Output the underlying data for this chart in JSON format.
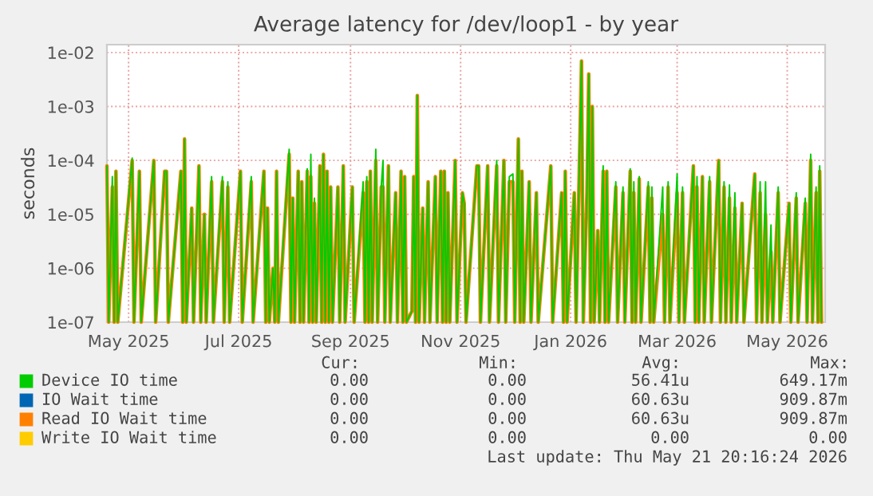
{
  "chart_data": {
    "type": "line",
    "title": "Average latency for /dev/loop1 - by year",
    "ylabel": "seconds",
    "log": "y",
    "grid": true,
    "legend": "bottom",
    "marker": "none",
    "line_style": "solid",
    "xlim": [
      "2025-04-19",
      "2026-05-22"
    ],
    "ylim": [
      1e-07,
      0.014
    ],
    "xticks": [
      {
        "value": "2025-05-01",
        "label": "May 2025"
      },
      {
        "value": "2025-07-01",
        "label": "Jul 2025"
      },
      {
        "value": "2025-09-01",
        "label": "Sep 2025"
      },
      {
        "value": "2025-11-01",
        "label": "Nov 2025"
      },
      {
        "value": "2026-01-01",
        "label": "Jan 2026"
      },
      {
        "value": "2026-03-01",
        "label": "Mar 2026"
      },
      {
        "value": "2026-05-01",
        "label": "May 2026"
      }
    ],
    "yticks": [
      {
        "value": 1e-07,
        "label": "1e-07"
      },
      {
        "value": 1e-06,
        "label": "1e-06"
      },
      {
        "value": 1e-05,
        "label": "1e-05"
      },
      {
        "value": 0.0001,
        "label": "1e-04"
      },
      {
        "value": 0.001,
        "label": "1e-03"
      },
      {
        "value": 0.01,
        "label": "1e-02"
      }
    ],
    "x": [
      "2025-04-19",
      "2025-04-20",
      "2025-04-22",
      "2025-04-23",
      "2025-04-24",
      "2025-04-25",
      "2025-05-03",
      "2025-05-04",
      "2025-05-07",
      "2025-05-08",
      "2025-05-15",
      "2025-05-16",
      "2025-05-21",
      "2025-05-22",
      "2025-05-23",
      "2025-05-30",
      "2025-05-31",
      "2025-06-01",
      "2025-06-02",
      "2025-06-05",
      "2025-06-06",
      "2025-06-09",
      "2025-06-10",
      "2025-06-12",
      "2025-06-13",
      "2025-06-16",
      "2025-06-17",
      "2025-06-22",
      "2025-06-23",
      "2025-06-25",
      "2025-06-26",
      "2025-07-02",
      "2025-07-03",
      "2025-07-08",
      "2025-07-09",
      "2025-07-15",
      "2025-07-16",
      "2025-07-17",
      "2025-07-18",
      "2025-07-20",
      "2025-07-21",
      "2025-07-22",
      "2025-07-23",
      "2025-07-29",
      "2025-07-30",
      "2025-07-31",
      "2025-08-01",
      "2025-08-03",
      "2025-08-04",
      "2025-08-05",
      "2025-08-06",
      "2025-08-08",
      "2025-08-09",
      "2025-08-10",
      "2025-08-11",
      "2025-08-12",
      "2025-08-13",
      "2025-08-15",
      "2025-08-16",
      "2025-08-17",
      "2025-08-18",
      "2025-08-19",
      "2025-08-20",
      "2025-08-21",
      "2025-08-22",
      "2025-08-25",
      "2025-08-26",
      "2025-08-28",
      "2025-08-29",
      "2025-09-02",
      "2025-09-03",
      "2025-09-08",
      "2025-09-09",
      "2025-09-10",
      "2025-09-11",
      "2025-09-12",
      "2025-09-13",
      "2025-09-15",
      "2025-09-16",
      "2025-09-18",
      "2025-09-19",
      "2025-09-20",
      "2025-09-22",
      "2025-09-23",
      "2025-09-26",
      "2025-09-27",
      "2025-09-29",
      "2025-09-30",
      "2025-10-01",
      "2025-10-02",
      "2025-10-05",
      "2025-10-06",
      "2025-10-07",
      "2025-10-08",
      "2025-10-09",
      "2025-10-11",
      "2025-10-12",
      "2025-10-14",
      "2025-10-15",
      "2025-10-18",
      "2025-10-19",
      "2025-10-21",
      "2025-10-22",
      "2025-10-23",
      "2025-10-24",
      "2025-10-25",
      "2025-10-26",
      "2025-10-29",
      "2025-10-30",
      "2025-11-02",
      "2025-11-03",
      "2025-11-04",
      "2025-11-10",
      "2025-11-11",
      "2025-11-12",
      "2025-11-16",
      "2025-11-17",
      "2025-11-21",
      "2025-11-22",
      "2025-11-25",
      "2025-11-26",
      "2025-11-28",
      "2025-11-30",
      "2025-12-01",
      "2025-12-03",
      "2025-12-04",
      "2025-12-05",
      "2025-12-06",
      "2025-12-09",
      "2025-12-10",
      "2025-12-13",
      "2025-12-14",
      "2025-12-21",
      "2025-12-22",
      "2025-12-27",
      "2025-12-28",
      "2025-12-29",
      "2025-12-30",
      "2026-01-03",
      "2026-01-04",
      "2026-01-07",
      "2026-01-08",
      "2026-01-10",
      "2026-01-11",
      "2026-01-12",
      "2026-01-13",
      "2026-01-14",
      "2026-01-16",
      "2026-01-17",
      "2026-01-19",
      "2026-01-20",
      "2026-01-21",
      "2026-01-22",
      "2026-01-26",
      "2026-01-27",
      "2026-01-30",
      "2026-01-31",
      "2026-02-03",
      "2026-02-04",
      "2026-02-05",
      "2026-02-06",
      "2026-02-08",
      "2026-02-09",
      "2026-02-13",
      "2026-02-14",
      "2026-02-15",
      "2026-02-16",
      "2026-02-21",
      "2026-02-22",
      "2026-02-24",
      "2026-02-25",
      "2026-03-01",
      "2026-03-02",
      "2026-03-04",
      "2026-03-05",
      "2026-03-10",
      "2026-03-11",
      "2026-03-12",
      "2026-03-13",
      "2026-03-15",
      "2026-03-16",
      "2026-03-19",
      "2026-03-20",
      "2026-03-24",
      "2026-03-25",
      "2026-03-27",
      "2026-03-28",
      "2026-03-30",
      "2026-03-31",
      "2026-04-02",
      "2026-04-03",
      "2026-04-06",
      "2026-04-07",
      "2026-04-13",
      "2026-04-14",
      "2026-04-16",
      "2026-04-17",
      "2026-04-19",
      "2026-04-20",
      "2026-04-22",
      "2026-04-23",
      "2026-04-26",
      "2026-04-27",
      "2026-05-02",
      "2026-05-03",
      "2026-05-06",
      "2026-05-07",
      "2026-05-11",
      "2026-05-12",
      "2026-05-14",
      "2026-05-15",
      "2026-05-17",
      "2026-05-18",
      "2026-05-19",
      "2026-05-20"
    ],
    "series": [
      {
        "name": "Device IO time",
        "color": "#00cc00",
        "values": [
          7.9e-05,
          1e-07,
          5e-05,
          1e-07,
          6.3e-05,
          1e-07,
          0.00011,
          1e-07,
          6.3e-05,
          1e-07,
          0.0001,
          1e-07,
          6.3e-05,
          6.3e-05,
          1e-07,
          6.3e-05,
          1e-07,
          0.00025,
          1e-07,
          1.3e-05,
          1e-07,
          7.9e-05,
          1e-07,
          1e-05,
          1e-07,
          5e-05,
          1e-07,
          5e-05,
          1e-07,
          4e-05,
          1e-07,
          6.3e-05,
          1e-07,
          5e-05,
          1e-07,
          6.3e-05,
          1e-07,
          1.3e-05,
          1e-07,
          1e-06,
          1e-07,
          6.3e-05,
          1e-07,
          0.00016,
          1e-07,
          2e-05,
          1e-07,
          6.3e-05,
          1e-07,
          4e-05,
          1e-07,
          7e-05,
          1e-07,
          0.00013,
          1e-07,
          2e-05,
          1e-07,
          7.9e-05,
          1e-07,
          0.00013,
          1e-07,
          6.3e-05,
          1e-07,
          3.2e-05,
          1e-07,
          3.2e-05,
          1e-07,
          7.9e-05,
          1e-07,
          3.2e-05,
          1e-07,
          4e-05,
          1e-07,
          5e-05,
          1e-07,
          6.3e-05,
          1e-07,
          0.00016,
          1e-07,
          3.2e-05,
          0.0001,
          1e-07,
          7.9e-05,
          1e-07,
          2.5e-05,
          1e-07,
          6.3e-05,
          1e-07,
          5e-05,
          1e-07,
          1.6e-07,
          5e-05,
          1e-07,
          0.0016,
          1e-07,
          1.3e-05,
          1e-07,
          4e-05,
          1e-07,
          5e-05,
          1e-07,
          6.3e-05,
          1e-07,
          6.3e-05,
          1e-07,
          2.5e-05,
          1e-07,
          0.0001,
          1e-07,
          2.5e-05,
          1.6e-05,
          1e-07,
          7.9e-05,
          7.9e-05,
          1e-07,
          7.9e-05,
          1e-07,
          0.0001,
          1e-07,
          0.0001,
          1e-07,
          5e-05,
          5.6e-05,
          1e-07,
          0.00025,
          1e-07,
          6.3e-05,
          1e-07,
          4e-05,
          1e-07,
          2.5e-05,
          1e-07,
          7.9e-05,
          1e-07,
          2.5e-05,
          1e-07,
          6.3e-05,
          1e-07,
          2.5e-05,
          1e-07,
          0.007,
          1e-07,
          2.5e-05,
          0.004,
          1e-07,
          0.001,
          1e-07,
          5e-06,
          1e-07,
          7.9e-05,
          1e-07,
          6.3e-05,
          1e-07,
          4e-05,
          1e-07,
          3.2e-05,
          1e-07,
          7e-05,
          1e-07,
          4e-05,
          1e-07,
          5e-05,
          1e-07,
          4e-05,
          1e-07,
          3.2e-05,
          1e-07,
          3.2e-05,
          1e-07,
          4e-05,
          1e-07,
          5.6e-05,
          1e-07,
          3.2e-05,
          1e-07,
          7.9e-05,
          1e-07,
          5e-05,
          1e-07,
          5e-05,
          1e-07,
          5e-05,
          1e-07,
          0.0001,
          1e-07,
          4e-05,
          1e-07,
          3.5e-05,
          1e-07,
          2.5e-05,
          1e-07,
          1.6e-05,
          1e-07,
          5.6e-05,
          1e-07,
          4e-05,
          1e-07,
          4e-05,
          1e-07,
          6.3e-06,
          1e-07,
          3.2e-05,
          1e-07,
          1.6e-05,
          1e-07,
          2.5e-05,
          1e-07,
          2e-05,
          1e-07,
          0.00013,
          1e-07,
          3.2e-05,
          1e-07,
          7.9e-05,
          1e-07
        ]
      },
      {
        "name": "IO Wait time",
        "color": "#0066b3",
        "values": [
          null,
          null,
          null,
          null,
          null,
          null,
          null,
          null,
          null,
          null,
          null,
          null,
          null,
          null,
          null,
          null,
          null,
          null,
          null,
          null,
          null,
          null,
          null,
          null,
          null,
          null,
          null,
          null,
          null,
          null,
          null,
          null,
          null,
          null,
          null,
          null,
          null,
          null,
          null,
          null,
          null,
          null,
          null,
          null,
          null,
          null,
          null,
          null,
          null,
          null,
          null,
          null,
          null,
          null,
          null,
          null,
          null,
          null,
          null,
          null,
          null,
          null,
          null,
          null,
          null,
          null,
          null,
          null,
          null,
          null,
          null,
          null,
          null,
          null,
          null,
          null,
          null,
          null,
          null,
          null,
          null,
          null,
          null,
          null,
          null,
          null,
          null,
          null,
          null,
          null,
          null,
          null,
          null,
          null,
          null,
          null,
          null,
          null,
          null,
          null,
          null,
          null,
          null,
          null,
          null,
          null,
          null,
          null,
          null,
          null,
          null,
          null,
          null,
          null,
          null,
          null,
          null,
          null,
          null,
          null,
          null,
          null,
          null,
          null,
          null,
          null,
          null,
          null,
          null,
          null,
          null,
          null,
          null,
          null,
          null,
          null,
          null,
          null,
          null,
          null,
          null,
          null,
          null,
          null,
          null,
          null,
          null,
          null,
          null,
          null,
          null,
          null,
          null,
          null,
          null,
          null,
          null,
          null,
          null,
          null,
          null,
          null,
          null,
          null,
          null,
          null,
          null,
          null,
          null,
          null,
          null,
          null,
          null,
          null,
          null,
          null,
          null,
          null,
          null,
          null,
          null,
          null,
          null,
          null,
          null,
          null,
          null,
          null,
          null,
          null,
          null,
          null,
          null,
          null,
          null,
          null,
          null,
          null,
          null,
          null,
          null,
          null,
          null,
          null,
          null,
          null,
          null,
          null,
          null,
          null,
          null,
          null,
          null,
          null,
          null
        ]
      },
      {
        "name": "Read IO Wait time",
        "color": "#ff8000",
        "values": [
          7.9e-05,
          1e-07,
          3.2e-05,
          1e-07,
          6.3e-05,
          1e-07,
          0.0001,
          1e-07,
          6.3e-05,
          1e-07,
          0.0001,
          1e-07,
          6.3e-05,
          6.3e-05,
          1e-07,
          6.3e-05,
          1e-07,
          0.00025,
          1e-07,
          1.3e-05,
          1e-07,
          7.9e-05,
          1e-07,
          1e-05,
          1e-07,
          4e-05,
          1e-07,
          4e-05,
          1e-07,
          3.2e-05,
          1e-07,
          6.3e-05,
          1e-07,
          4e-05,
          1e-07,
          6.3e-05,
          1e-07,
          1.3e-05,
          1e-07,
          1e-06,
          1e-07,
          6.3e-05,
          1e-07,
          0.00013,
          1e-07,
          2e-05,
          1e-07,
          6.3e-05,
          1e-07,
          4e-05,
          1e-07,
          6.3e-05,
          1e-07,
          5e-05,
          1e-07,
          1.6e-05,
          1e-07,
          7.9e-05,
          1e-07,
          0.00013,
          1e-07,
          6.3e-05,
          1e-07,
          3.2e-05,
          1e-07,
          3.2e-05,
          1e-07,
          7.9e-05,
          1e-07,
          3.2e-05,
          1e-07,
          2.5e-05,
          1e-07,
          4e-05,
          1e-07,
          6.3e-05,
          1e-07,
          0.0001,
          1e-07,
          3.2e-05,
          3.2e-05,
          1e-07,
          7.9e-05,
          1e-07,
          2.5e-05,
          1e-07,
          6.3e-05,
          1e-07,
          5e-05,
          1e-07,
          1.6e-07,
          5e-05,
          1e-07,
          0.0016,
          1e-07,
          1.3e-05,
          1e-07,
          4e-05,
          1e-07,
          5e-05,
          1e-07,
          6.3e-05,
          1e-07,
          6.3e-05,
          1e-07,
          2.5e-05,
          1e-07,
          0.0001,
          1e-07,
          2.5e-05,
          1.6e-05,
          1e-07,
          7.9e-05,
          7.9e-05,
          1e-07,
          7.9e-05,
          1e-07,
          7.9e-05,
          1e-07,
          0.0001,
          1e-07,
          4e-05,
          4e-05,
          1e-07,
          0.00025,
          1e-07,
          6.3e-05,
          1e-07,
          4e-05,
          1e-07,
          2.5e-05,
          1e-07,
          7.9e-05,
          1e-07,
          2.5e-05,
          1e-07,
          6.3e-05,
          1e-07,
          2.5e-05,
          1e-07,
          0.007,
          1e-07,
          2.5e-05,
          0.004,
          1e-07,
          0.001,
          1e-07,
          5e-06,
          1e-07,
          6.3e-05,
          1e-07,
          6.3e-05,
          1e-07,
          3.2e-05,
          1e-07,
          2.5e-05,
          1e-07,
          6.3e-05,
          1e-07,
          2.5e-05,
          1e-07,
          4.5e-05,
          1e-07,
          3.2e-05,
          1e-07,
          2e-05,
          1e-07,
          1e-05,
          1e-07,
          3.2e-05,
          1e-07,
          2.5e-05,
          1e-07,
          2.5e-05,
          1e-07,
          7.9e-05,
          1e-07,
          3.2e-05,
          1e-07,
          5e-05,
          1e-07,
          4e-05,
          1e-07,
          0.0001,
          1e-07,
          3.2e-05,
          1e-07,
          2e-05,
          1e-07,
          1.3e-05,
          1e-07,
          1.6e-05,
          1e-07,
          5.6e-05,
          1e-07,
          2.5e-05,
          1e-07,
          1e-05,
          1e-07,
          2e-06,
          1e-07,
          2.5e-05,
          1e-07,
          1.6e-05,
          1e-07,
          2e-05,
          1e-07,
          1.6e-05,
          1e-07,
          0.0001,
          1e-07,
          2.5e-05,
          1e-07,
          6.3e-05,
          1e-07
        ]
      },
      {
        "name": "Write IO Wait time",
        "color": "#ffcc00",
        "values": [
          null,
          null,
          null,
          null,
          null,
          null,
          null,
          null,
          null,
          null,
          null,
          null,
          null,
          null,
          null,
          null,
          null,
          null,
          null,
          null,
          null,
          null,
          null,
          null,
          null,
          null,
          null,
          null,
          null,
          null,
          null,
          null,
          null,
          null,
          null,
          null,
          null,
          null,
          null,
          null,
          null,
          null,
          null,
          null,
          null,
          null,
          null,
          null,
          null,
          null,
          null,
          null,
          null,
          null,
          null,
          null,
          null,
          null,
          null,
          null,
          null,
          null,
          null,
          null,
          null,
          null,
          null,
          null,
          null,
          null,
          null,
          null,
          null,
          null,
          null,
          null,
          null,
          null,
          null,
          null,
          null,
          null,
          null,
          null,
          null,
          null,
          null,
          null,
          null,
          null,
          null,
          null,
          null,
          null,
          null,
          null,
          null,
          null,
          null,
          null,
          null,
          null,
          null,
          null,
          null,
          null,
          null,
          null,
          null,
          null,
          null,
          null,
          null,
          null,
          null,
          null,
          null,
          null,
          null,
          null,
          null,
          null,
          null,
          null,
          null,
          null,
          null,
          null,
          null,
          null,
          null,
          null,
          null,
          null,
          null,
          null,
          null,
          null,
          null,
          null,
          null,
          null,
          null,
          null,
          null,
          null,
          null,
          null,
          null,
          null,
          null,
          null,
          null,
          null,
          null,
          null,
          null,
          null,
          null,
          null,
          null,
          null,
          null,
          null,
          null,
          null,
          null,
          null,
          null,
          null,
          null,
          null,
          null,
          null,
          null,
          null,
          null,
          null,
          null,
          null,
          null,
          null,
          null,
          null,
          null,
          null,
          null,
          null,
          null,
          null,
          null,
          null,
          null,
          null,
          null,
          null,
          null,
          null,
          null,
          null,
          null,
          null,
          null,
          null,
          null,
          null,
          null,
          null,
          null,
          null,
          null,
          null,
          null,
          null,
          null
        ]
      }
    ],
    "annotations": [
      "Cur:",
      "Min:",
      "Avg:",
      "Max:",
      "0.00",
      "0.00",
      "56.41u",
      "649.17m",
      "0.00",
      "0.00",
      "60.63u",
      "909.87m",
      "0.00",
      "0.00",
      "60.63u",
      "909.87m",
      "0.00",
      "0.00",
      "0.00",
      "0.00",
      "Last update: Thu May 21 20:16:24 2026"
    ]
  }
}
